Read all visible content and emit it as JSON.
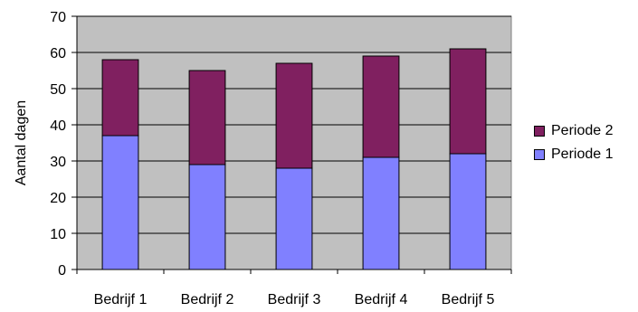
{
  "chart_data": {
    "type": "bar",
    "stacked": true,
    "categories": [
      "Bedrijf 1",
      "Bedrijf 2",
      "Bedrijf 3",
      "Bedrijf 4",
      "Bedrijf 5"
    ],
    "series": [
      {
        "name": "Periode 1",
        "color": "#8080ff",
        "values": [
          37,
          29,
          28,
          31,
          32
        ]
      },
      {
        "name": "Periode 2",
        "color": "#802060",
        "values": [
          21,
          26,
          29,
          28,
          29
        ]
      }
    ],
    "ylabel": "Aantal dagen",
    "ylim": [
      0,
      70
    ],
    "yticks": [
      0,
      10,
      20,
      30,
      40,
      50,
      60,
      70
    ],
    "grid": true,
    "plot_background": "#c0c0c0",
    "legend_position": "right"
  }
}
